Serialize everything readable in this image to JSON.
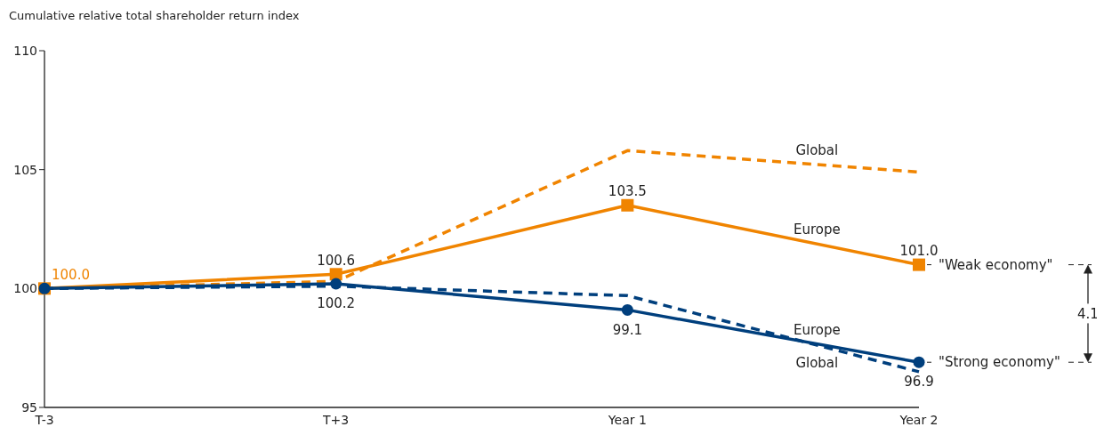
{
  "chart_data": {
    "type": "line",
    "ylabel": "Cumulative relative total shareholder return index",
    "categories": [
      "T-3",
      "T+3",
      "Year 1",
      "Year 2"
    ],
    "ylim": [
      95,
      110
    ],
    "yticks": [
      95,
      100,
      105,
      110
    ],
    "grid": false,
    "series": [
      {
        "name": "Global",
        "color": "#f08400",
        "line_style": "dashed",
        "marker": "none",
        "values": [
          100,
          100.3,
          105.8,
          104.9
        ]
      },
      {
        "name": "Europe",
        "color": "#f08400",
        "line_style": "solid",
        "marker": "square",
        "values": [
          100.0,
          100.6,
          103.5,
          101.0
        ],
        "value_labels": [
          "100.0",
          "100.6",
          "103.5",
          "101.0"
        ]
      },
      {
        "name": "Europe",
        "color": "#003f7d",
        "line_style": "solid",
        "marker": "circle",
        "values": [
          100,
          100.2,
          99.1,
          96.9
        ],
        "value_labels": [
          null,
          "100.2",
          "99.1",
          "96.9"
        ]
      },
      {
        "name": "Global",
        "color": "#003f7d",
        "line_style": "dashed",
        "marker": "none",
        "values": [
          100,
          100.1,
          99.7,
          96.5
        ]
      }
    ],
    "annotations": [
      {
        "text": "\"Weak economy\"",
        "x": "Year 2",
        "y": 101.0
      },
      {
        "text": "\"Strong economy\"",
        "x": "Year 2",
        "y": 96.9
      },
      "4.1"
    ]
  }
}
